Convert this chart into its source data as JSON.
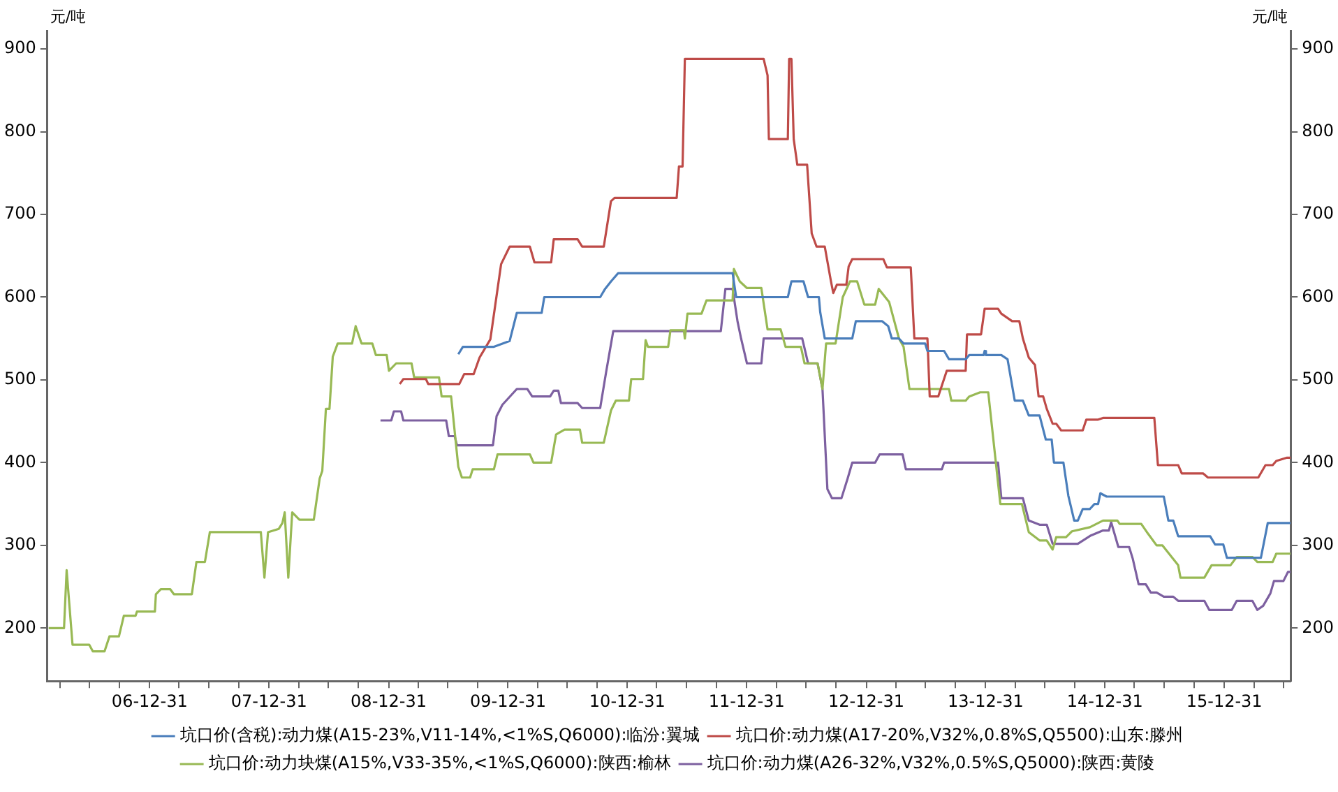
{
  "chart_data": {
    "type": "line",
    "ylabel": "元/吨",
    "y2label": "元/吨",
    "xlim": [
      "2006-02-21",
      "2016-07-21"
    ],
    "xticks": [
      {
        "value": "2006-03-31",
        "label": null
      },
      {
        "value": "2006-06-30",
        "label": null
      },
      {
        "value": "2006-09-30",
        "label": null
      },
      {
        "value": "2006-12-31",
        "label": "06-12-31"
      },
      {
        "value": "2007-03-31",
        "label": null
      },
      {
        "value": "2007-06-30",
        "label": null
      },
      {
        "value": "2007-09-30",
        "label": null
      },
      {
        "value": "2007-12-31",
        "label": "07-12-31"
      },
      {
        "value": "2008-03-31",
        "label": null
      },
      {
        "value": "2008-06-30",
        "label": null
      },
      {
        "value": "2008-09-30",
        "label": null
      },
      {
        "value": "2008-12-31",
        "label": "08-12-31"
      },
      {
        "value": "2009-03-31",
        "label": null
      },
      {
        "value": "2009-06-30",
        "label": null
      },
      {
        "value": "2009-09-30",
        "label": null
      },
      {
        "value": "2009-12-31",
        "label": "09-12-31"
      },
      {
        "value": "2010-03-31",
        "label": null
      },
      {
        "value": "2010-06-30",
        "label": null
      },
      {
        "value": "2010-09-30",
        "label": null
      },
      {
        "value": "2010-12-31",
        "label": "10-12-31"
      },
      {
        "value": "2011-03-31",
        "label": null
      },
      {
        "value": "2011-06-30",
        "label": null
      },
      {
        "value": "2011-09-30",
        "label": null
      },
      {
        "value": "2011-12-31",
        "label": "11-12-31"
      },
      {
        "value": "2012-03-31",
        "label": null
      },
      {
        "value": "2012-06-30",
        "label": null
      },
      {
        "value": "2012-09-30",
        "label": null
      },
      {
        "value": "2012-12-31",
        "label": "12-12-31"
      },
      {
        "value": "2013-03-31",
        "label": null
      },
      {
        "value": "2013-06-30",
        "label": null
      },
      {
        "value": "2013-09-30",
        "label": null
      },
      {
        "value": "2013-12-31",
        "label": "13-12-31"
      },
      {
        "value": "2014-03-31",
        "label": null
      },
      {
        "value": "2014-06-30",
        "label": null
      },
      {
        "value": "2014-09-30",
        "label": null
      },
      {
        "value": "2014-12-31",
        "label": "14-12-31"
      },
      {
        "value": "2015-03-31",
        "label": null
      },
      {
        "value": "2015-06-30",
        "label": null
      },
      {
        "value": "2015-09-30",
        "label": null
      },
      {
        "value": "2015-12-31",
        "label": "15-12-31"
      },
      {
        "value": "2016-03-31",
        "label": null
      },
      {
        "value": "2016-06-30",
        "label": null
      }
    ],
    "ylim": [
      136,
      922
    ],
    "yticks": [
      200,
      300,
      400,
      500,
      600,
      700,
      800,
      900
    ],
    "y2lim": [
      136,
      922
    ],
    "y2ticks": [
      200,
      300,
      400,
      500,
      600,
      700,
      800,
      900
    ],
    "legend": "bottom",
    "grid": false,
    "marker": "none",
    "series": [
      {
        "name": "坑口价(含税):动力煤(A15-23%,V11-14%,<1%S,Q6000):临汾:翼城",
        "color": "#4a7ebb",
        "x": [
          "2009-08-01",
          "2009-08-15",
          "2009-11-18",
          "2010-01-05",
          "2010-01-27",
          "2010-04-13",
          "2010-04-21",
          "2010-10-09",
          "2010-10-24",
          "2010-11-11",
          "2010-12-03",
          "2011-11-18",
          "2011-11-29",
          "2012-05-05",
          "2012-05-16",
          "2012-06-22",
          "2012-07-06",
          "2012-08-08",
          "2012-08-12",
          "2012-08-26",
          "2012-11-18",
          "2012-11-29",
          "2013-02-17",
          "2013-03-08",
          "2013-03-19",
          "2013-04-10",
          "2013-04-24",
          "2013-06-29",
          "2013-07-06",
          "2013-08-26",
          "2013-09-10",
          "2013-10-31",
          "2013-11-11",
          "2013-12-25",
          "2013-12-28",
          "2014-01-01",
          "2014-02-17",
          "2014-03-08",
          "2014-03-30",
          "2014-04-24",
          "2014-05-12",
          "2014-06-14",
          "2014-07-03",
          "2014-07-21",
          "2014-07-28",
          "2014-08-26",
          "2014-09-10",
          "2014-09-28",
          "2014-10-09",
          "2014-10-24",
          "2014-11-15",
          "2014-11-29",
          "2014-12-10",
          "2014-12-17",
          "2015-01-05",
          "2015-06-29",
          "2015-07-13",
          "2015-07-28",
          "2015-08-12",
          "2015-11-18",
          "2015-12-03",
          "2015-12-28",
          "2016-01-08",
          "2016-04-21",
          "2016-05-12",
          "2016-07-21"
        ],
        "values": [
          531,
          540,
          540,
          547,
          581,
          581,
          600,
          600,
          610,
          619,
          629,
          629,
          600,
          600,
          619,
          619,
          600,
          600,
          582,
          550,
          550,
          571,
          571,
          565,
          550,
          550,
          544,
          544,
          535,
          535,
          525,
          525,
          530,
          530,
          535,
          530,
          530,
          525,
          475,
          475,
          457,
          457,
          428,
          428,
          400,
          400,
          360,
          330,
          330,
          344,
          344,
          350,
          350,
          363,
          359,
          359,
          330,
          330,
          311,
          311,
          301,
          301,
          285,
          285,
          327,
          327
        ]
      },
      {
        "name": "坑口价:动力煤(A17-20%,V32%,0.8%S,Q5500):山东:滕州",
        "color": "#be4b48",
        "x": [
          "2009-02-03",
          "2009-02-14",
          "2009-04-24",
          "2009-05-01",
          "2009-08-04",
          "2009-08-19",
          "2009-09-17",
          "2009-10-05",
          "2009-11-07",
          "2009-12-10",
          "2010-01-05",
          "2010-03-08",
          "2010-03-22",
          "2010-05-12",
          "2010-05-20",
          "2010-08-01",
          "2010-08-15",
          "2010-10-20",
          "2010-11-11",
          "2010-11-22",
          "2011-05-31",
          "2011-06-07",
          "2011-06-18",
          "2011-06-25",
          "2012-02-21",
          "2012-03-04",
          "2012-03-08",
          "2012-05-05",
          "2012-05-09",
          "2012-05-16",
          "2012-05-23",
          "2012-06-03",
          "2012-07-03",
          "2012-07-17",
          "2012-08-01",
          "2012-08-26",
          "2012-09-14",
          "2012-09-21",
          "2012-10-02",
          "2012-10-31",
          "2012-11-07",
          "2012-11-18",
          "2013-02-21",
          "2013-03-04",
          "2013-05-16",
          "2013-05-27",
          "2013-07-06",
          "2013-07-13",
          "2013-08-08",
          "2013-09-03",
          "2013-10-31",
          "2013-11-04",
          "2013-12-17",
          "2013-12-28",
          "2014-02-07",
          "2014-02-17",
          "2014-03-22",
          "2014-04-13",
          "2014-04-24",
          "2014-05-12",
          "2014-05-31",
          "2014-06-11",
          "2014-06-25",
          "2014-07-06",
          "2014-07-24",
          "2014-08-04",
          "2014-08-19",
          "2014-10-24",
          "2014-11-04",
          "2014-12-10",
          "2014-12-25",
          "2015-05-31",
          "2015-06-11",
          "2015-08-12",
          "2015-08-23",
          "2015-10-27",
          "2015-11-11",
          "2016-04-13",
          "2016-05-05",
          "2016-05-27",
          "2016-06-07",
          "2016-07-10",
          "2016-07-21"
        ],
        "values": [
          495,
          501,
          501,
          495,
          495,
          507,
          507,
          527,
          549,
          640,
          661,
          661,
          642,
          642,
          670,
          670,
          661,
          661,
          716,
          720,
          720,
          758,
          758,
          888,
          888,
          868,
          791,
          791,
          888,
          888,
          791,
          760,
          760,
          677,
          661,
          661,
          619,
          605,
          615,
          615,
          637,
          646,
          646,
          636,
          636,
          550,
          550,
          480,
          480,
          511,
          511,
          555,
          555,
          586,
          586,
          580,
          571,
          571,
          550,
          527,
          518,
          480,
          480,
          465,
          447,
          447,
          439,
          439,
          452,
          452,
          454,
          454,
          397,
          397,
          387,
          387,
          382,
          382,
          397,
          397,
          402,
          406,
          406
        ]
      },
      {
        "name": "坑口价:动力块煤(A15%,V33-35%,<1%S,Q6000):陕西:榆林",
        "color": "#98b954",
        "x": [
          "2006-02-25",
          "2006-04-13",
          "2006-04-21",
          "2006-05-09",
          "2006-06-29",
          "2006-07-10",
          "2006-08-15",
          "2006-08-30",
          "2006-09-28",
          "2006-10-13",
          "2006-11-18",
          "2006-11-22",
          "2007-01-16",
          "2007-01-19",
          "2007-02-03",
          "2007-03-04",
          "2007-03-15",
          "2007-05-09",
          "2007-05-23",
          "2007-06-18",
          "2007-07-03",
          "2007-12-06",
          "2007-12-17",
          "2007-12-28",
          "2008-01-30",
          "2008-02-10",
          "2008-02-17",
          "2008-02-28",
          "2008-03-11",
          "2008-04-02",
          "2008-05-16",
          "2008-06-03",
          "2008-06-11",
          "2008-06-22",
          "2008-07-03",
          "2008-07-13",
          "2008-07-28",
          "2008-09-10",
          "2008-09-21",
          "2008-10-09",
          "2008-11-11",
          "2008-11-22",
          "2008-12-25",
          "2009-01-01",
          "2009-01-23",
          "2009-03-11",
          "2009-03-19",
          "2009-06-03",
          "2009-06-11",
          "2009-07-10",
          "2009-08-01",
          "2009-08-12",
          "2009-09-06",
          "2009-09-14",
          "2009-11-18",
          "2009-11-29",
          "2010-03-08",
          "2010-03-19",
          "2010-05-12",
          "2010-05-27",
          "2010-06-22",
          "2010-08-08",
          "2010-08-15",
          "2010-10-20",
          "2010-11-11",
          "2010-11-26",
          "2011-01-05",
          "2011-01-12",
          "2011-02-17",
          "2011-02-25",
          "2011-03-04",
          "2011-05-05",
          "2011-05-12",
          "2011-06-22",
          "2011-06-25",
          "2011-07-03",
          "2011-08-15",
          "2011-08-30",
          "2011-11-18",
          "2011-11-22",
          "2011-12-10",
          "2012-01-01",
          "2012-02-14",
          "2012-03-04",
          "2012-04-13",
          "2012-04-28",
          "2012-06-14",
          "2012-06-25",
          "2012-08-04",
          "2012-08-19",
          "2012-08-30",
          "2012-09-28",
          "2012-10-20",
          "2012-11-11",
          "2012-12-03",
          "2012-12-25",
          "2013-01-27",
          "2013-02-07",
          "2013-03-11",
          "2013-04-10",
          "2013-04-24",
          "2013-05-12",
          "2013-09-10",
          "2013-09-17",
          "2013-10-31",
          "2013-11-11",
          "2013-12-14",
          "2014-01-08",
          "2014-02-14",
          "2014-04-21",
          "2014-05-12",
          "2014-06-14",
          "2014-07-06",
          "2014-07-24",
          "2014-08-04",
          "2014-09-03",
          "2014-09-21",
          "2014-11-15",
          "2014-12-25",
          "2015-02-07",
          "2015-02-14",
          "2015-04-21",
          "2015-05-12",
          "2015-06-07",
          "2015-06-25",
          "2015-08-12",
          "2015-08-19",
          "2015-10-31",
          "2015-11-22",
          "2016-01-19",
          "2016-02-07",
          "2016-03-26",
          "2016-04-10",
          "2016-05-27",
          "2016-06-07",
          "2016-07-21"
        ],
        "values": [
          200,
          200,
          270,
          180,
          180,
          172,
          172,
          190,
          190,
          215,
          215,
          220,
          220,
          241,
          247,
          247,
          241,
          241,
          280,
          280,
          316,
          316,
          261,
          316,
          320,
          327,
          340,
          261,
          340,
          331,
          331,
          381,
          390,
          465,
          465,
          528,
          544,
          544,
          565,
          544,
          544,
          530,
          530,
          511,
          520,
          520,
          503,
          503,
          480,
          480,
          395,
          382,
          382,
          392,
          392,
          410,
          410,
          400,
          400,
          434,
          440,
          440,
          424,
          424,
          463,
          475,
          475,
          501,
          501,
          548,
          540,
          540,
          560,
          560,
          550,
          580,
          580,
          596,
          596,
          634,
          619,
          611,
          611,
          561,
          561,
          540,
          540,
          520,
          520,
          489,
          544,
          544,
          600,
          619,
          619,
          591,
          591,
          610,
          594,
          550,
          540,
          489,
          489,
          475,
          475,
          480,
          485,
          485,
          350,
          350,
          316,
          306,
          306,
          295,
          310,
          310,
          317,
          322,
          330,
          330,
          326,
          326,
          314,
          300,
          300,
          276,
          261,
          261,
          276,
          276,
          286,
          286,
          280,
          280,
          290,
          290
        ]
      },
      {
        "name": "坑口价:动力煤(A26-32%,V32%,0.5%S,Q5000):陕西:黄陵",
        "color": "#7d60a0",
        "x": [
          "2008-12-06",
          "2009-01-08",
          "2009-01-16",
          "2009-02-07",
          "2009-02-14",
          "2009-06-25",
          "2009-07-03",
          "2009-07-21",
          "2009-07-28",
          "2009-11-15",
          "2009-11-26",
          "2009-12-14",
          "2010-01-27",
          "2010-02-28",
          "2010-03-15",
          "2010-05-09",
          "2010-05-20",
          "2010-06-03",
          "2010-06-11",
          "2010-08-01",
          "2010-08-15",
          "2010-10-09",
          "2010-10-27",
          "2010-11-18",
          "2011-10-13",
          "2011-10-27",
          "2011-11-18",
          "2011-12-03",
          "2011-12-14",
          "2012-01-01",
          "2012-02-14",
          "2012-02-21",
          "2012-06-18",
          "2012-07-06",
          "2012-08-04",
          "2012-08-19",
          "2012-09-03",
          "2012-09-17",
          "2012-10-16",
          "2012-11-04",
          "2012-11-18",
          "2013-01-27",
          "2013-02-10",
          "2013-04-21",
          "2013-05-01",
          "2013-08-19",
          "2013-08-26",
          "2014-02-07",
          "2014-02-17",
          "2014-04-24",
          "2014-05-12",
          "2014-06-14",
          "2014-07-06",
          "2014-07-24",
          "2014-10-09",
          "2014-11-18",
          "2014-12-25",
          "2015-01-12",
          "2015-01-19",
          "2015-02-10",
          "2015-03-15",
          "2015-03-26",
          "2015-04-13",
          "2015-05-05",
          "2015-05-20",
          "2015-06-07",
          "2015-06-29",
          "2015-07-28",
          "2015-08-12",
          "2015-10-31",
          "2015-11-15",
          "2016-01-23",
          "2016-02-07",
          "2016-03-26",
          "2016-04-10",
          "2016-04-28",
          "2016-05-20",
          "2016-05-31",
          "2016-06-29",
          "2016-07-13",
          "2016-07-21"
        ],
        "values": [
          451,
          451,
          462,
          462,
          451,
          451,
          432,
          432,
          421,
          421,
          456,
          470,
          489,
          489,
          480,
          480,
          487,
          487,
          472,
          472,
          466,
          466,
          509,
          559,
          559,
          610,
          610,
          571,
          550,
          520,
          520,
          550,
          550,
          520,
          520,
          489,
          368,
          357,
          357,
          381,
          400,
          400,
          410,
          410,
          392,
          392,
          400,
          400,
          357,
          357,
          330,
          325,
          325,
          302,
          302,
          312,
          318,
          318,
          328,
          298,
          298,
          284,
          253,
          253,
          243,
          243,
          238,
          238,
          233,
          233,
          222,
          222,
          233,
          233,
          222,
          227,
          242,
          257,
          257,
          268,
          268
        ]
      }
    ]
  }
}
